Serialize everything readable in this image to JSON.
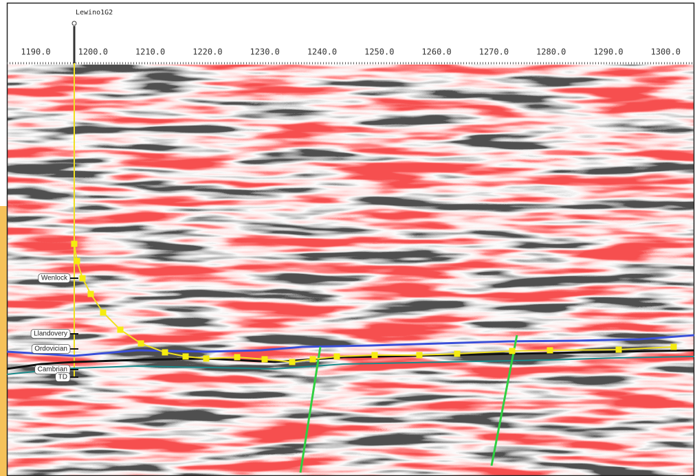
{
  "well": {
    "name": "Lewino1G2"
  },
  "axis": {
    "ticks": [
      "1190.0",
      "1200.0",
      "1210.0",
      "1220.0",
      "1230.0",
      "1240.0",
      "1250.0",
      "1260.0",
      "1270.0",
      "1280.0",
      "1290.0",
      "1300.0"
    ]
  },
  "tops": [
    {
      "label": "Wenlock"
    },
    {
      "label": "Llandovery"
    },
    {
      "label": "Ordovician"
    },
    {
      "label": "Cambrian"
    },
    {
      "label": "TD"
    }
  ]
}
